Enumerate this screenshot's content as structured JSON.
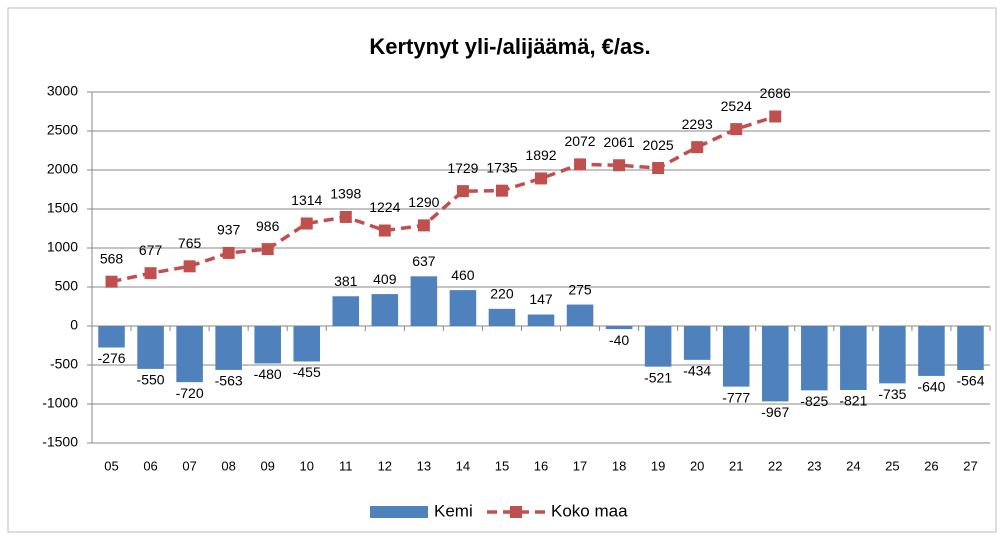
{
  "chart_data": {
    "type": "bar-line",
    "title": "Kertynyt yli-/alijäämä, €/as.",
    "categories": [
      "05",
      "06",
      "07",
      "08",
      "09",
      "10",
      "11",
      "12",
      "13",
      "14",
      "15",
      "16",
      "17",
      "18",
      "19",
      "20",
      "21",
      "22",
      "23",
      "24",
      "25",
      "26",
      "27"
    ],
    "series": [
      {
        "name": "Kemi",
        "type": "bar",
        "color": "#4f81bd",
        "values": [
          -276,
          -550,
          -720,
          -563,
          -480,
          -455,
          381,
          409,
          637,
          460,
          220,
          147,
          275,
          -40,
          -521,
          -434,
          -777,
          -967,
          -825,
          -821,
          -735,
          -640,
          -564
        ]
      },
      {
        "name": "Koko maa",
        "type": "line",
        "color": "#c0504d",
        "values": [
          568,
          677,
          765,
          937,
          986,
          1314,
          1398,
          1224,
          1290,
          1729,
          1735,
          1892,
          2072,
          2061,
          2025,
          2293,
          2524,
          2686,
          null,
          null,
          null,
          null,
          null
        ]
      }
    ],
    "ylim": [
      -1500,
      3000
    ],
    "yticks": [
      -1500,
      -1000,
      -500,
      0,
      500,
      1000,
      1500,
      2000,
      2500,
      3000
    ],
    "grid": true,
    "legend": "bottom"
  }
}
